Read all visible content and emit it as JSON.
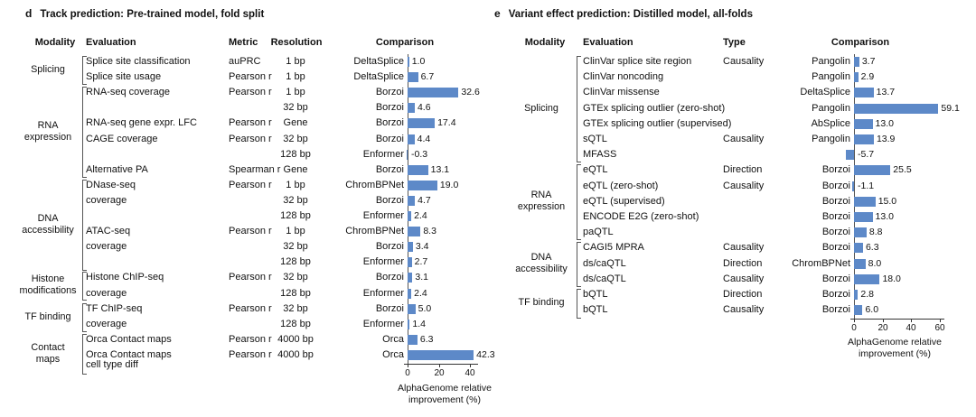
{
  "chart_data": [
    {
      "type": "bar",
      "orientation": "horizontal",
      "panel_letter": "d",
      "title": "Track prediction: Pre-trained model, fold split",
      "columns": [
        "Modality",
        "Evaluation",
        "Metric",
        "Resolution",
        "Comparison"
      ],
      "xlabel": "AlphaGenome relative improvement (%)",
      "xticks": [
        0,
        20,
        40
      ],
      "xlim": [
        -6,
        47
      ],
      "bar_color": "#5d89c8",
      "grid": false,
      "legend": false,
      "groups": [
        {
          "label": "Splicing",
          "row_start": 0,
          "row_count": 2
        },
        {
          "label": "RNA\nexpression",
          "row_start": 2,
          "row_count": 6
        },
        {
          "label": "DNA\naccessibility",
          "row_start": 8,
          "row_count": 6
        },
        {
          "label": "Histone\nmodifications",
          "row_start": 14,
          "row_count": 2
        },
        {
          "label": "TF binding",
          "row_start": 16,
          "row_count": 2
        },
        {
          "label": "Contact maps",
          "row_start": 18,
          "row_count": 2
        }
      ],
      "rows": [
        {
          "evaluation": "Splice site classification",
          "metric": "auPRC",
          "resolution": "1 bp",
          "comparison": "DeltaSplice",
          "value": 1.0,
          "label": "1.0"
        },
        {
          "evaluation": "Splice site usage",
          "metric": "Pearson r",
          "resolution": "1 bp",
          "comparison": "DeltaSplice",
          "value": 6.7,
          "label": "6.7"
        },
        {
          "evaluation": "RNA-seq coverage",
          "metric": "Pearson r",
          "resolution": "1 bp",
          "comparison": "Borzoi",
          "value": 32.6,
          "label": "32.6"
        },
        {
          "evaluation": "",
          "metric": "",
          "resolution": "32 bp",
          "comparison": "Borzoi",
          "value": 4.6,
          "label": "4.6"
        },
        {
          "evaluation": "RNA-seq gene expr. LFC",
          "metric": "Pearson r",
          "resolution": "Gene",
          "comparison": "Borzoi",
          "value": 17.4,
          "label": "17.4"
        },
        {
          "evaluation": "CAGE coverage",
          "metric": "Pearson r",
          "resolution": "32 bp",
          "comparison": "Borzoi",
          "value": 4.4,
          "label": "4.4"
        },
        {
          "evaluation": "",
          "metric": "",
          "resolution": "128 bp",
          "comparison": "Enformer",
          "value": -0.3,
          "label": "-0.3"
        },
        {
          "evaluation": "Alternative PA",
          "metric": "Spearman r",
          "resolution": "Gene",
          "comparison": "Borzoi",
          "value": 13.1,
          "label": "13.1"
        },
        {
          "evaluation": "DNase-seq",
          "metric": "Pearson r",
          "resolution": "1 bp",
          "comparison": "ChromBPNet",
          "value": 19.0,
          "label": "19.0"
        },
        {
          "evaluation": "coverage",
          "metric": "",
          "resolution": "32 bp",
          "comparison": "Borzoi",
          "value": 4.7,
          "label": "4.7"
        },
        {
          "evaluation": "",
          "metric": "",
          "resolution": "128 bp",
          "comparison": "Enformer",
          "value": 2.4,
          "label": "2.4"
        },
        {
          "evaluation": "ATAC-seq",
          "metric": "Pearson r",
          "resolution": "1 bp",
          "comparison": "ChromBPNet",
          "value": 8.3,
          "label": "8.3"
        },
        {
          "evaluation": "coverage",
          "metric": "",
          "resolution": "32 bp",
          "comparison": "Borzoi",
          "value": 3.4,
          "label": "3.4"
        },
        {
          "evaluation": "",
          "metric": "",
          "resolution": "128 bp",
          "comparison": "Enformer",
          "value": 2.7,
          "label": "2.7"
        },
        {
          "evaluation": "Histone ChIP-seq",
          "metric": "Pearson r",
          "resolution": "32 bp",
          "comparison": "Borzoi",
          "value": 3.1,
          "label": "3.1"
        },
        {
          "evaluation": "coverage",
          "metric": "",
          "resolution": "128 bp",
          "comparison": "Enformer",
          "value": 2.4,
          "label": "2.4"
        },
        {
          "evaluation": "TF ChIP-seq",
          "metric": "Pearson r",
          "resolution": "32 bp",
          "comparison": "Borzoi",
          "value": 5.0,
          "label": "5.0"
        },
        {
          "evaluation": "coverage",
          "metric": "",
          "resolution": "128 bp",
          "comparison": "Enformer",
          "value": 1.4,
          "label": "1.4"
        },
        {
          "evaluation": "Orca Contact maps",
          "metric": "Pearson r",
          "resolution": "4000 bp",
          "comparison": "Orca",
          "value": 6.3,
          "label": "6.3"
        },
        {
          "evaluation": "Orca Contact maps",
          "evaluation2": "cell type diff",
          "metric": "Pearson r",
          "resolution": "4000 bp",
          "comparison": "Orca",
          "value": 42.3,
          "label": "42.3"
        }
      ]
    },
    {
      "type": "bar",
      "orientation": "horizontal",
      "panel_letter": "e",
      "title": "Variant effect prediction: Distilled model, all-folds",
      "columns": [
        "Modality",
        "Evaluation",
        "Type",
        "Comparison"
      ],
      "xlabel": "AlphaGenome relative improvement (%)",
      "xticks": [
        0,
        20,
        40,
        60
      ],
      "xlim": [
        -8,
        65
      ],
      "bar_color": "#5d89c8",
      "grid": false,
      "legend": false,
      "groups": [
        {
          "label": "Splicing",
          "row_start": 0,
          "row_count": 7
        },
        {
          "label": "RNA\nexpression",
          "row_start": 7,
          "row_count": 5
        },
        {
          "label": "DNA\naccessibility",
          "row_start": 12,
          "row_count": 3
        },
        {
          "label": "TF binding",
          "row_start": 15,
          "row_count": 2
        }
      ],
      "rows": [
        {
          "evaluation": "ClinVar splice site region",
          "type": "Causality",
          "comparison": "Pangolin",
          "value": 3.7,
          "label": "3.7"
        },
        {
          "evaluation": "ClinVar noncoding",
          "type": "",
          "comparison": "Pangolin",
          "value": 2.9,
          "label": "2.9"
        },
        {
          "evaluation": "ClinVar missense",
          "type": "",
          "comparison": "DeltaSplice",
          "value": 13.7,
          "label": "13.7"
        },
        {
          "evaluation": "GTEx splicing outlier (zero-shot)",
          "type": "",
          "comparison": "Pangolin",
          "value": 59.1,
          "label": "59.1"
        },
        {
          "evaluation": "GTEx splicing outlier (supervised)",
          "type": "",
          "comparison": "AbSplice",
          "value": 13.0,
          "label": "13.0"
        },
        {
          "evaluation": "sQTL",
          "type": "Causality",
          "comparison": "Pangolin",
          "value": 13.9,
          "label": "13.9"
        },
        {
          "evaluation": "MFASS",
          "type": "",
          "comparison": "",
          "value": -5.7,
          "label": "-5.7"
        },
        {
          "evaluation": "eQTL",
          "type": "Direction",
          "comparison": "Borzoi",
          "value": 25.5,
          "label": "25.5"
        },
        {
          "evaluation": "eQTL (zero-shot)",
          "type": "Causality",
          "comparison": "Borzoi",
          "value": -1.1,
          "label": "-1.1"
        },
        {
          "evaluation": "eQTL (supervised)",
          "type": "",
          "comparison": "Borzoi",
          "value": 15.0,
          "label": "15.0"
        },
        {
          "evaluation": "ENCODE E2G (zero-shot)",
          "type": "",
          "comparison": "Borzoi",
          "value": 13.0,
          "label": "13.0"
        },
        {
          "evaluation": "paQTL",
          "type": "",
          "comparison": "Borzoi",
          "value": 8.8,
          "label": "8.8"
        },
        {
          "evaluation": "CAGI5 MPRA",
          "type": "Causality",
          "comparison": "Borzoi",
          "value": 6.3,
          "label": "6.3"
        },
        {
          "evaluation": "ds/caQTL",
          "type": "Direction",
          "comparison": "ChromBPNet",
          "value": 8.0,
          "label": "8.0"
        },
        {
          "evaluation": "ds/caQTL",
          "type": "Causality",
          "comparison": "Borzoi",
          "value": 18.0,
          "label": "18.0"
        },
        {
          "evaluation": "bQTL",
          "type": "Direction",
          "comparison": "Borzoi",
          "value": 2.8,
          "label": "2.8"
        },
        {
          "evaluation": "bQTL",
          "type": "Causality",
          "comparison": "Borzoi",
          "value": 6.0,
          "label": "6.0"
        }
      ]
    }
  ]
}
